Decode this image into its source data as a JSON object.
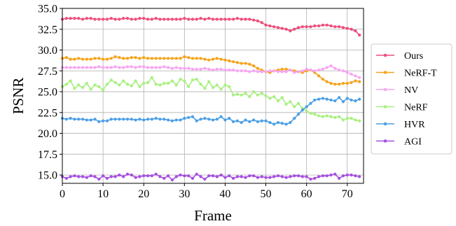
{
  "chart_data": {
    "type": "line",
    "title": "",
    "xlabel": "Frame",
    "ylabel": "PSNR",
    "xlim": [
      0,
      74
    ],
    "ylim": [
      14,
      35
    ],
    "xticks": [
      0,
      10,
      20,
      30,
      40,
      50,
      60,
      70
    ],
    "yticks": [
      15.0,
      17.5,
      20.0,
      22.5,
      25.0,
      27.5,
      30.0,
      32.5,
      35.0
    ],
    "ytick_labels": [
      "15.0",
      "17.5",
      "20.0",
      "22.5",
      "25.0",
      "27.5",
      "30.0",
      "32.5",
      "35.0"
    ],
    "grid": true,
    "legend_position": "right-outside",
    "series": [
      {
        "name": "Ours",
        "color": "#EE4D7A",
        "values": [
          33.7,
          33.8,
          33.8,
          33.8,
          33.8,
          33.7,
          33.8,
          33.8,
          33.7,
          33.7,
          33.7,
          33.7,
          33.8,
          33.7,
          33.7,
          33.8,
          33.8,
          33.7,
          33.7,
          33.8,
          33.8,
          33.7,
          33.7,
          33.8,
          33.7,
          33.7,
          33.7,
          33.7,
          33.7,
          33.7,
          33.8,
          33.7,
          33.7,
          33.7,
          33.8,
          33.7,
          33.8,
          33.7,
          33.7,
          33.7,
          33.7,
          33.7,
          33.7,
          33.8,
          33.7,
          33.7,
          33.7,
          33.6,
          33.5,
          33.3,
          33.0,
          32.9,
          32.8,
          32.7,
          32.6,
          32.5,
          32.3,
          32.5,
          32.7,
          32.8,
          32.8,
          32.8,
          32.9,
          32.9,
          33.0,
          33.0,
          32.9,
          32.8,
          32.8,
          32.7,
          32.6,
          32.5,
          32.3,
          31.8
        ]
      },
      {
        "name": "NeRF-T",
        "color": "#F5A31A",
        "values": [
          29.0,
          29.1,
          28.9,
          28.9,
          29.0,
          28.9,
          28.9,
          28.9,
          29.0,
          29.0,
          28.9,
          28.9,
          29.0,
          29.2,
          29.1,
          29.0,
          29.0,
          29.1,
          29.1,
          29.0,
          29.1,
          29.0,
          29.0,
          29.0,
          29.0,
          29.0,
          29.0,
          29.0,
          29.0,
          29.0,
          29.2,
          29.1,
          29.0,
          29.0,
          29.0,
          28.9,
          28.8,
          28.9,
          29.0,
          28.9,
          28.8,
          28.7,
          28.6,
          28.5,
          28.4,
          28.4,
          28.3,
          28.1,
          27.8,
          27.6,
          27.4,
          27.3,
          27.5,
          27.6,
          27.7,
          27.7,
          27.6,
          27.5,
          27.4,
          27.3,
          27.5,
          27.6,
          27.3,
          26.9,
          26.5,
          26.2,
          26.0,
          25.9,
          25.9,
          26.0,
          26.0,
          26.1,
          26.3,
          26.2
        ]
      },
      {
        "name": "NV",
        "color": "#F7A6F2",
        "values": [
          27.9,
          27.9,
          27.9,
          27.9,
          27.9,
          27.9,
          27.9,
          27.9,
          27.9,
          28.0,
          27.9,
          27.9,
          27.9,
          28.0,
          27.9,
          27.9,
          28.0,
          28.0,
          27.9,
          28.0,
          28.0,
          27.9,
          27.9,
          27.9,
          27.9,
          28.0,
          27.9,
          27.8,
          27.9,
          27.8,
          27.8,
          27.8,
          27.7,
          27.7,
          27.7,
          27.8,
          27.7,
          27.6,
          27.7,
          27.7,
          27.6,
          27.6,
          27.6,
          27.5,
          27.5,
          27.5,
          27.4,
          27.5,
          27.4,
          27.4,
          27.4,
          27.5,
          27.5,
          27.4,
          27.4,
          27.4,
          27.6,
          27.3,
          27.4,
          27.5,
          27.7,
          27.6,
          27.5,
          27.6,
          27.7,
          27.9,
          28.1,
          27.8,
          27.6,
          27.5,
          27.3,
          27.1,
          26.9,
          26.7
        ]
      },
      {
        "name": "NeRF",
        "color": "#A8F07F",
        "values": [
          25.6,
          25.9,
          26.3,
          25.4,
          25.8,
          25.5,
          26.0,
          25.3,
          25.8,
          25.6,
          25.2,
          25.9,
          26.4,
          26.1,
          25.8,
          26.3,
          25.9,
          25.7,
          26.3,
          25.6,
          26.0,
          26.1,
          26.7,
          25.9,
          25.8,
          26.0,
          26.0,
          26.3,
          25.8,
          26.5,
          26.3,
          25.6,
          26.4,
          26.5,
          25.9,
          25.4,
          26.2,
          25.5,
          25.8,
          25.3,
          25.8,
          25.6,
          24.6,
          24.7,
          24.6,
          24.8,
          24.4,
          25.0,
          24.6,
          24.8,
          24.5,
          24.2,
          24.4,
          23.9,
          24.3,
          23.5,
          23.8,
          23.2,
          23.6,
          23.0,
          22.7,
          22.4,
          22.3,
          22.1,
          22.0,
          22.1,
          22.0,
          21.9,
          22.0,
          21.6,
          21.8,
          21.8,
          21.6,
          21.5
        ]
      },
      {
        "name": "HVR",
        "color": "#4C9FE6",
        "values": [
          21.8,
          21.7,
          21.8,
          21.7,
          21.7,
          21.7,
          21.6,
          21.6,
          21.7,
          21.4,
          21.5,
          21.5,
          21.7,
          21.7,
          21.7,
          21.7,
          21.7,
          21.7,
          21.6,
          21.7,
          21.6,
          21.7,
          21.7,
          21.8,
          21.7,
          21.7,
          21.6,
          21.5,
          21.6,
          21.6,
          21.8,
          21.9,
          22.0,
          21.5,
          21.7,
          21.8,
          21.7,
          21.6,
          21.7,
          22.0,
          21.6,
          21.8,
          21.4,
          21.5,
          21.3,
          21.6,
          21.4,
          21.6,
          21.4,
          21.5,
          21.5,
          21.3,
          21.1,
          21.3,
          21.2,
          21.1,
          21.3,
          21.8,
          22.3,
          22.8,
          23.2,
          23.6,
          24.0,
          24.1,
          24.2,
          24.1,
          24.0,
          23.9,
          24.3,
          23.8,
          24.2,
          24.0,
          23.9,
          24.1
        ]
      },
      {
        "name": "AGI",
        "color": "#A64FE2",
        "values": [
          14.8,
          14.6,
          14.8,
          14.9,
          14.8,
          14.8,
          14.7,
          14.9,
          14.8,
          14.5,
          14.9,
          14.6,
          14.8,
          14.8,
          15.0,
          14.8,
          15.1,
          15.0,
          14.7,
          14.8,
          14.9,
          14.9,
          14.9,
          15.1,
          14.8,
          14.6,
          14.9,
          14.4,
          14.8,
          15.0,
          14.9,
          14.9,
          14.6,
          15.1,
          14.8,
          14.5,
          14.9,
          14.9,
          14.8,
          15.0,
          14.7,
          14.9,
          14.6,
          14.8,
          14.8,
          14.7,
          14.9,
          14.9,
          14.7,
          14.8,
          14.7,
          14.7,
          14.8,
          14.9,
          14.8,
          14.7,
          14.8,
          14.9,
          14.9,
          14.8,
          14.8,
          14.5,
          14.6,
          14.8,
          14.9,
          14.9,
          15.0,
          15.1,
          14.6,
          14.9,
          15.0,
          15.0,
          14.9,
          14.8
        ]
      }
    ]
  }
}
